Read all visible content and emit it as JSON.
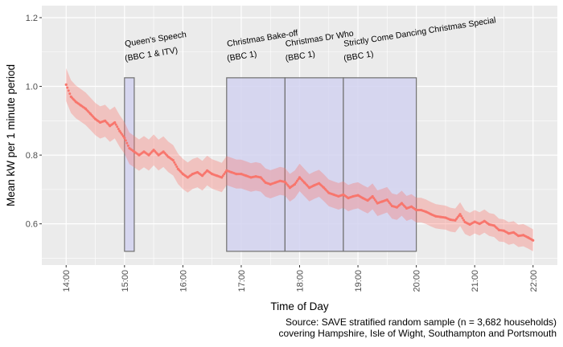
{
  "chart_data": {
    "type": "scatter",
    "title": "",
    "xlabel": "Time of Day",
    "ylabel": "Mean kW per 1 minute period",
    "caption": [
      "Source: SAVE stratified random sample (n = 3,682 households)",
      "covering Hampshire, Isle of Wight, Southampton and Portsmouth"
    ],
    "xlim": [
      "13:35",
      "22:25"
    ],
    "ylim": [
      0.48,
      1.235
    ],
    "x_ticks": [
      "14:00",
      "15:00",
      "16:00",
      "17:00",
      "18:00",
      "19:00",
      "20:00",
      "21:00",
      "22:00"
    ],
    "y_ticks": [
      "0.6",
      "0.8",
      "1.0",
      "1.2"
    ],
    "y_tick_values": [
      0.6,
      0.8,
      1.0,
      1.2
    ],
    "y_minor_values": [
      0.5,
      0.7,
      0.9,
      1.1
    ],
    "grid": true,
    "series_color": "#F8766D",
    "highlight_fill": "#D2D2F0",
    "highlight_border": "#707070",
    "series": [
      {
        "name": "Mean kW",
        "start": "14:00",
        "step_minutes": 5,
        "values": [
          1.005,
          0.97,
          0.955,
          0.945,
          0.935,
          0.92,
          0.905,
          0.895,
          0.9,
          0.885,
          0.895,
          0.87,
          0.85,
          0.82,
          0.81,
          0.8,
          0.81,
          0.8,
          0.815,
          0.8,
          0.81,
          0.795,
          0.785,
          0.76,
          0.745,
          0.735,
          0.745,
          0.75,
          0.74,
          0.755,
          0.745,
          0.74,
          0.735,
          0.755,
          0.75,
          0.745,
          0.745,
          0.74,
          0.735,
          0.738,
          0.735,
          0.72,
          0.715,
          0.72,
          0.725,
          0.722,
          0.705,
          0.715,
          0.735,
          0.72,
          0.705,
          0.712,
          0.718,
          0.705,
          0.69,
          0.685,
          0.68,
          0.685,
          0.675,
          0.68,
          0.683,
          0.675,
          0.668,
          0.68,
          0.66,
          0.665,
          0.67,
          0.652,
          0.648,
          0.66,
          0.645,
          0.65,
          0.64,
          0.64,
          0.635,
          0.628,
          0.622,
          0.62,
          0.618,
          0.612,
          0.61,
          0.628,
          0.605,
          0.598,
          0.606,
          0.6,
          0.608,
          0.598,
          0.595,
          0.582,
          0.58,
          0.572,
          0.575,
          0.565,
          0.567,
          0.56,
          0.552
        ],
        "ci_halfwidth": {
          "start": 0.048,
          "end": 0.032
        }
      }
    ],
    "annotations": [
      {
        "label": [
          "Queen's Speech",
          "(BBC 1 & ITV)"
        ],
        "start": "15:00",
        "end": "15:10",
        "ymin": 0.52,
        "ymax": 1.025
      },
      {
        "label": [
          "Christmas Bake-off",
          "(BBC 1)"
        ],
        "start": "16:45",
        "end": "17:45",
        "ymin": 0.52,
        "ymax": 1.025
      },
      {
        "label": [
          "Christmas Dr Who",
          "(BBC 1)"
        ],
        "start": "17:45",
        "end": "18:45",
        "ymin": 0.52,
        "ymax": 1.025
      },
      {
        "label": [
          "Strictly Come Dancing Christmas Special",
          "(BBC 1)"
        ],
        "start": "18:45",
        "end": "20:00",
        "ymin": 0.52,
        "ymax": 1.025
      }
    ]
  }
}
